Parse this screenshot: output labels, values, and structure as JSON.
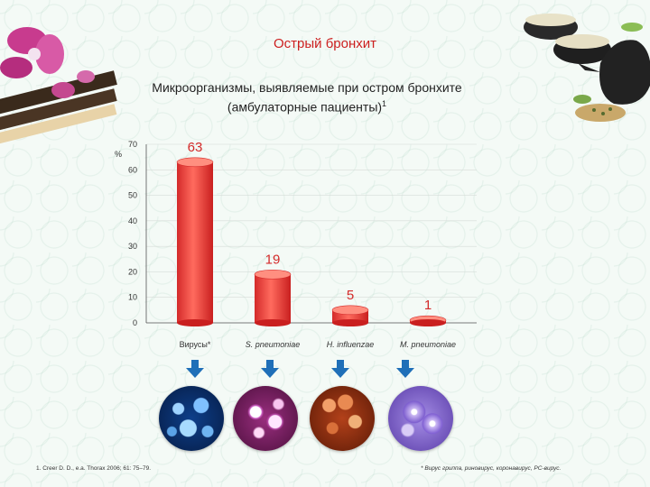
{
  "slide": {
    "title": "Острый бронхит",
    "subtitle_line1": "Микроорганизмы, выявляемые при остром бронхите",
    "subtitle_line2": "(амбулаторные пациенты)",
    "subtitle_sup": "1",
    "footnote_left": "1. Creer D. D., e.a. Thorax 2006; 61: 75–79.",
    "footnote_right": "* Вирус гриппа, риновирус, коронавирус, РС-вирус."
  },
  "colors": {
    "title": "#cc1f1f",
    "bar": "#ee3b3b",
    "value_label": "#d42a2a",
    "arrow": "#1f6fb8"
  },
  "icons": {
    "arrows": "arrow-down-icon",
    "micro_images": [
      "virus-image",
      "pneumococcus-image",
      "haemophilus-image",
      "mycoplasma-image"
    ]
  },
  "chart_data": {
    "type": "bar",
    "title": "",
    "unit_label": "%",
    "categories": [
      "Вирусы*",
      "S. pneumoniae",
      "H. influenzae",
      "M. pneumoniae"
    ],
    "values": [
      63,
      19,
      5,
      1
    ],
    "data_labels": [
      "63",
      "19",
      "5",
      "1"
    ],
    "ylim": [
      0,
      70
    ],
    "yticks": [
      "0",
      "10",
      "20",
      "30",
      "40",
      "50",
      "60",
      "70"
    ],
    "grid": true
  }
}
